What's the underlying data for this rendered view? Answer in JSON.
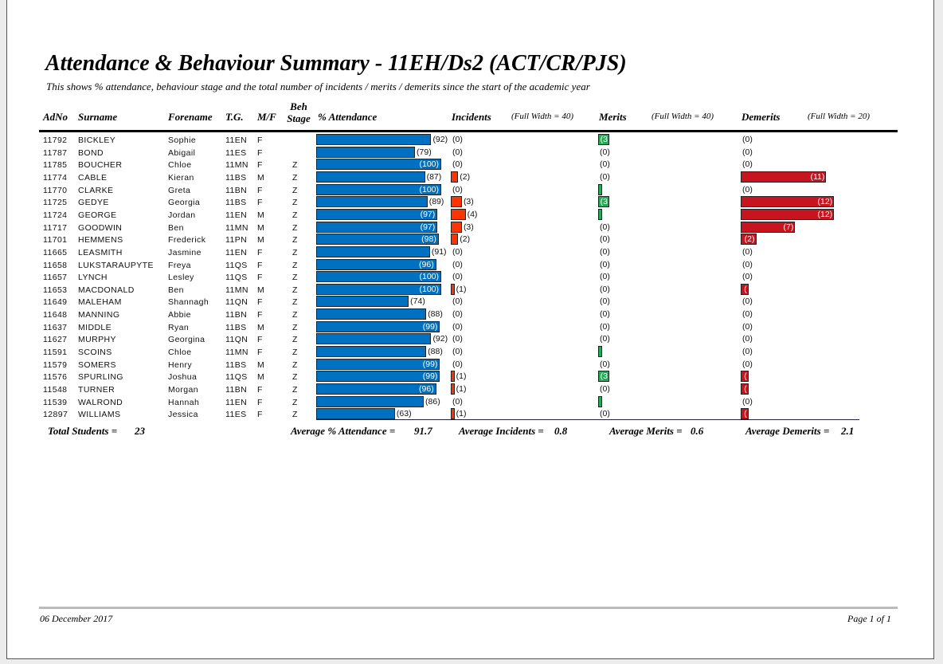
{
  "header": {
    "title": "Attendance & Behaviour Summary -  11EH/Ds2 (ACT/CR/PJS)",
    "subtitle": "This shows % attendance, behaviour stage and the total number of incidents / merits / demerits since the start of the academic year"
  },
  "table": {
    "columns": {
      "adno": "AdNo",
      "surname": "Surname",
      "forename": "Forename",
      "tg": "T.G.",
      "mf": "M/F",
      "stage": "Beh Stage",
      "attendance": "% Attendance",
      "incidents": "Incidents",
      "incidents_scale": {
        "value": 40,
        "label": "(Full Width = 40)"
      },
      "merits": "Merits",
      "merits_scale": {
        "value": 40,
        "label": "(Full Width = 40)"
      },
      "demerits": "Demerits",
      "demerits_scale": {
        "value": 20,
        "label": "(Full Width = 20)"
      }
    },
    "rows": [
      {
        "adno": "11792",
        "surname": "BICKLEY",
        "forename": "Sophie",
        "tg": "11EN",
        "mf": "F",
        "stage": null,
        "attendance": 92,
        "attendance_label": "(92)",
        "incidents": 0,
        "incidents_label": "(0)",
        "merits": 3,
        "merits_label": "3)",
        "demerits": 0,
        "demerits_label": "(0)"
      },
      {
        "adno": "11787",
        "surname": "BOND",
        "forename": "Abigail",
        "tg": "11ES",
        "mf": "F",
        "stage": null,
        "attendance": 79,
        "attendance_label": "(79)",
        "incidents": 0,
        "incidents_label": "(0)",
        "merits": 0,
        "merits_label": "(0)",
        "demerits": 0,
        "demerits_label": "(0)"
      },
      {
        "adno": "11785",
        "surname": "BOUCHER",
        "forename": "Chloe",
        "tg": "11MN",
        "mf": "F",
        "stage": "Z",
        "attendance": 100,
        "attendance_label": "(100)",
        "incidents": 0,
        "incidents_label": "(0)",
        "merits": 0,
        "merits_label": "(0)",
        "demerits": 0,
        "demerits_label": "(0)"
      },
      {
        "adno": "11774",
        "surname": "CABLE",
        "forename": "Kieran",
        "tg": "11BS",
        "mf": "M",
        "stage": "Z",
        "attendance": 87,
        "attendance_label": "(87)",
        "incidents": 2,
        "incidents_label": "(2)",
        "merits": 0,
        "merits_label": "(0)",
        "demerits": 11,
        "demerits_label": "(11)"
      },
      {
        "adno": "11770",
        "surname": "CLARKE",
        "forename": "Greta",
        "tg": "11BN",
        "mf": "F",
        "stage": "Z",
        "attendance": 100,
        "attendance_label": "(100)",
        "incidents": 0,
        "incidents_label": "(0)",
        "merits": 1,
        "merits_label": null,
        "demerits": 0,
        "demerits_label": "(0)"
      },
      {
        "adno": "11725",
        "surname": "GEDYE",
        "forename": "Georgia",
        "tg": "11BS",
        "mf": "F",
        "stage": "Z",
        "attendance": 89,
        "attendance_label": "(89)",
        "incidents": 3,
        "incidents_label": "(3)",
        "merits": 3,
        "merits_label": "3)",
        "demerits": 12,
        "demerits_label": "(12)"
      },
      {
        "adno": "11724",
        "surname": "GEORGE",
        "forename": "Jordan",
        "tg": "11EN",
        "mf": "M",
        "stage": "Z",
        "attendance": 97,
        "attendance_label": "(97)",
        "incidents": 4,
        "incidents_label": "(4)",
        "merits": 1,
        "merits_label": null,
        "demerits": 12,
        "demerits_label": "(12)"
      },
      {
        "adno": "11717",
        "surname": "GOODWIN",
        "forename": "Ben",
        "tg": "11MN",
        "mf": "M",
        "stage": "Z",
        "attendance": 97,
        "attendance_label": "(97)",
        "incidents": 3,
        "incidents_label": "(3)",
        "merits": 0,
        "merits_label": "(0)",
        "demerits": 7,
        "demerits_label": "(7)"
      },
      {
        "adno": "11701",
        "surname": "HEMMENS",
        "forename": "Frederick",
        "tg": "11PN",
        "mf": "M",
        "stage": "Z",
        "attendance": 98,
        "attendance_label": "(98)",
        "incidents": 2,
        "incidents_label": "(2)",
        "merits": 0,
        "merits_label": "(0)",
        "demerits": 2,
        "demerits_label": "(2)"
      },
      {
        "adno": "11665",
        "surname": "LEASMITH",
        "forename": "Jasmine",
        "tg": "11EN",
        "mf": "F",
        "stage": "Z",
        "attendance": 91,
        "attendance_label": "(91)",
        "incidents": 0,
        "incidents_label": "(0)",
        "merits": 0,
        "merits_label": "(0)",
        "demerits": 0,
        "demerits_label": "(0)"
      },
      {
        "adno": "11658",
        "surname": "LUKSTARAUPYTE",
        "forename": "Freya",
        "tg": "11QS",
        "mf": "F",
        "stage": "Z",
        "attendance": 96,
        "attendance_label": "(96)",
        "incidents": 0,
        "incidents_label": "(0)",
        "merits": 0,
        "merits_label": "(0)",
        "demerits": 0,
        "demerits_label": "(0)"
      },
      {
        "adno": "11657",
        "surname": "LYNCH",
        "forename": "Lesley",
        "tg": "11QS",
        "mf": "F",
        "stage": "Z",
        "attendance": 100,
        "attendance_label": "(100)",
        "incidents": 0,
        "incidents_label": "(0)",
        "merits": 0,
        "merits_label": "(0)",
        "demerits": 0,
        "demerits_label": "(0)"
      },
      {
        "adno": "11653",
        "surname": "MACDONALD",
        "forename": "Ben",
        "tg": "11MN",
        "mf": "M",
        "stage": "Z",
        "attendance": 100,
        "attendance_label": "(100)",
        "incidents": 1,
        "incidents_label": "(1)",
        "merits": 0,
        "merits_label": "(0)",
        "demerits": 1,
        "demerits_label": ")"
      },
      {
        "adno": "11649",
        "surname": "MALEHAM",
        "forename": "Shannagh",
        "tg": "11QN",
        "mf": "F",
        "stage": "Z",
        "attendance": 74,
        "attendance_label": "(74)",
        "incidents": 0,
        "incidents_label": "(0)",
        "merits": 0,
        "merits_label": "(0)",
        "demerits": 0,
        "demerits_label": "(0)"
      },
      {
        "adno": "11648",
        "surname": "MANNING",
        "forename": "Abbie",
        "tg": "11BN",
        "mf": "F",
        "stage": "Z",
        "attendance": 88,
        "attendance_label": "(88)",
        "incidents": 0,
        "incidents_label": "(0)",
        "merits": 0,
        "merits_label": "(0)",
        "demerits": 0,
        "demerits_label": "(0)"
      },
      {
        "adno": "11637",
        "surname": "MIDDLE",
        "forename": "Ryan",
        "tg": "11BS",
        "mf": "M",
        "stage": "Z",
        "attendance": 99,
        "attendance_label": "(99)",
        "incidents": 0,
        "incidents_label": "(0)",
        "merits": 0,
        "merits_label": "(0)",
        "demerits": 0,
        "demerits_label": "(0)"
      },
      {
        "adno": "11627",
        "surname": "MURPHY",
        "forename": "Georgina",
        "tg": "11QN",
        "mf": "F",
        "stage": "Z",
        "attendance": 92,
        "attendance_label": "(92)",
        "incidents": 0,
        "incidents_label": "(0)",
        "merits": 0,
        "merits_label": "(0)",
        "demerits": 0,
        "demerits_label": "(0)"
      },
      {
        "adno": "11591",
        "surname": "SCOINS",
        "forename": "Chloe",
        "tg": "11MN",
        "mf": "F",
        "stage": "Z",
        "attendance": 88,
        "attendance_label": "(88)",
        "incidents": 0,
        "incidents_label": "(0)",
        "merits": 1,
        "merits_label": null,
        "demerits": 0,
        "demerits_label": "(0)"
      },
      {
        "adno": "11579",
        "surname": "SOMERS",
        "forename": "Henry",
        "tg": "11BS",
        "mf": "M",
        "stage": "Z",
        "attendance": 99,
        "attendance_label": "(99)",
        "incidents": 0,
        "incidents_label": "(0)",
        "merits": 0,
        "merits_label": "(0)",
        "demerits": 0,
        "demerits_label": "(0)"
      },
      {
        "adno": "11576",
        "surname": "SPURLING",
        "forename": "Joshua",
        "tg": "11QS",
        "mf": "M",
        "stage": "Z",
        "attendance": 99,
        "attendance_label": "(99)",
        "incidents": 1,
        "incidents_label": "(1)",
        "merits": 3,
        "merits_label": "3)",
        "demerits": 1,
        "demerits_label": ")"
      },
      {
        "adno": "11548",
        "surname": "TURNER",
        "forename": "Morgan",
        "tg": "11BN",
        "mf": "F",
        "stage": "Z",
        "attendance": 96,
        "attendance_label": "(96)",
        "incidents": 1,
        "incidents_label": "(1)",
        "merits": 0,
        "merits_label": "(0)",
        "demerits": 1,
        "demerits_label": ")"
      },
      {
        "adno": "11539",
        "surname": "WALROND",
        "forename": "Hannah",
        "tg": "11EN",
        "mf": "F",
        "stage": "Z",
        "attendance": 86,
        "attendance_label": "(86)",
        "incidents": 0,
        "incidents_label": "(0)",
        "merits": 1,
        "merits_label": null,
        "demerits": 0,
        "demerits_label": "(0)"
      },
      {
        "adno": "12897",
        "surname": "WILLIAMS",
        "forename": "Jessica",
        "tg": "11ES",
        "mf": "F",
        "stage": "Z",
        "attendance": 63,
        "attendance_label": "(63)",
        "incidents": 1,
        "incidents_label": "(1)",
        "merits": 0,
        "merits_label": "(0)",
        "demerits": 1,
        "demerits_label": ")"
      }
    ]
  },
  "summary": {
    "total_students_label": "Total Students =",
    "total_students": 23,
    "avg_attendance_label": "Average % Attendance =",
    "avg_attendance": 91.7,
    "avg_incidents_label": "Average Incidents =",
    "avg_incidents": 0.8,
    "avg_merits_label": "Average Merits =",
    "avg_merits": 0.6,
    "avg_demerits_label": "Average Demerits =",
    "avg_demerits": 2.1
  },
  "footer": {
    "date": "06 December 2017",
    "page": "Page 1 of 1"
  }
}
